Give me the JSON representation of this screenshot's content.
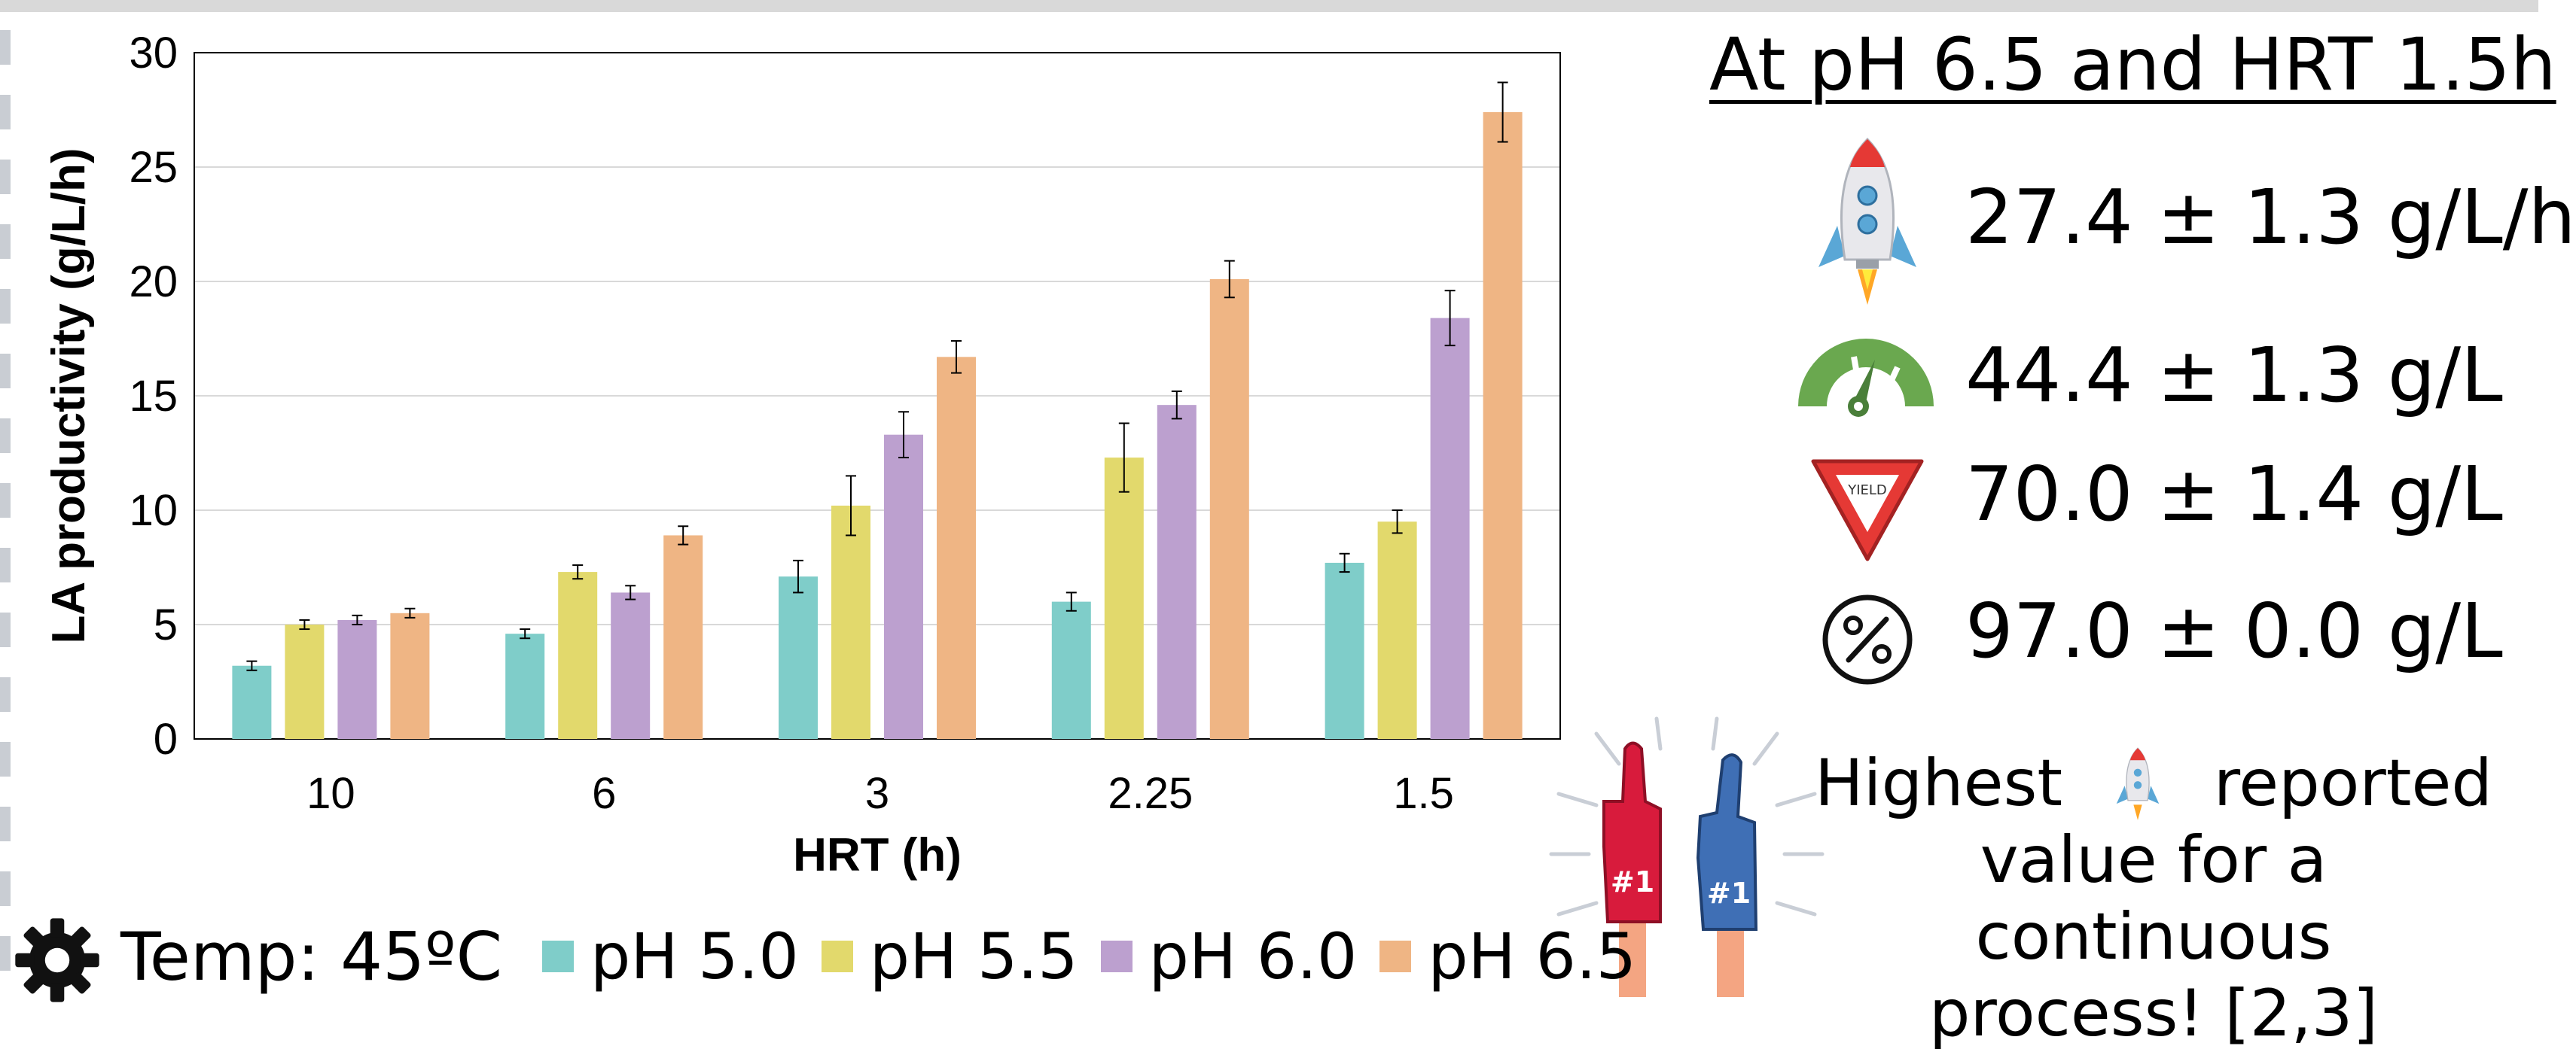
{
  "chart_data": {
    "type": "bar",
    "xlabel": "HRT (h)",
    "ylabel": "LA productivity (g/L/h)",
    "ylim": [
      0,
      30
    ],
    "yticks": [
      0,
      5,
      10,
      15,
      20,
      25,
      30
    ],
    "grid": true,
    "legend_position": "bottom",
    "categories": [
      "10",
      "6",
      "3",
      "2.25",
      "1.5"
    ],
    "series": [
      {
        "name": "pH 5.0",
        "color": "#7fcdc9",
        "values": [
          3.2,
          4.6,
          7.1,
          6.0,
          7.7
        ],
        "errors": [
          0.2,
          0.2,
          0.7,
          0.4,
          0.4
        ]
      },
      {
        "name": "pH 5.5",
        "color": "#e2d96c",
        "values": [
          5.0,
          7.3,
          10.2,
          12.3,
          9.5
        ],
        "errors": [
          0.2,
          0.3,
          1.3,
          1.5,
          0.5
        ]
      },
      {
        "name": "pH 6.0",
        "color": "#bca0cf",
        "values": [
          5.2,
          6.4,
          13.3,
          14.6,
          18.4
        ],
        "errors": [
          0.2,
          0.3,
          1.0,
          0.6,
          1.2
        ]
      },
      {
        "name": "pH 6.5",
        "color": "#efb584",
        "values": [
          5.5,
          8.9,
          16.7,
          20.1,
          27.4
        ],
        "errors": [
          0.2,
          0.4,
          0.7,
          0.8,
          1.3
        ]
      }
    ]
  },
  "summary": {
    "headline": "At pH 6.5 and HRT 1.5h",
    "metrics": [
      {
        "icon": "rocket-icon",
        "text": "27.4 ± 1.3 g/L/h"
      },
      {
        "icon": "gauge-icon",
        "text": "44.4 ± 1.3 g/L"
      },
      {
        "icon": "yield-sign-icon",
        "text": "70.0 ± 1.4 g/L"
      },
      {
        "icon": "percent-icon",
        "text": "97.0 ± 0.0 g/L"
      }
    ],
    "yield_sign_text": "YIELD",
    "highlight_line1_before": "Highest",
    "highlight_line1_after": "reported",
    "highlight_line2": "value for a continuous",
    "highlight_line3": "process! [2,3]",
    "foam_finger_text": "#1"
  },
  "conditions": {
    "temperature": "Temp: 45ºC"
  },
  "colors": {
    "ph50": "#7fcdc9",
    "ph55": "#e2d96c",
    "ph60": "#bca0cf",
    "ph65": "#efb584",
    "gauge_green": "#6aa84f",
    "yield_red": "#e53935",
    "rocket_blue": "#5aa7d6"
  }
}
